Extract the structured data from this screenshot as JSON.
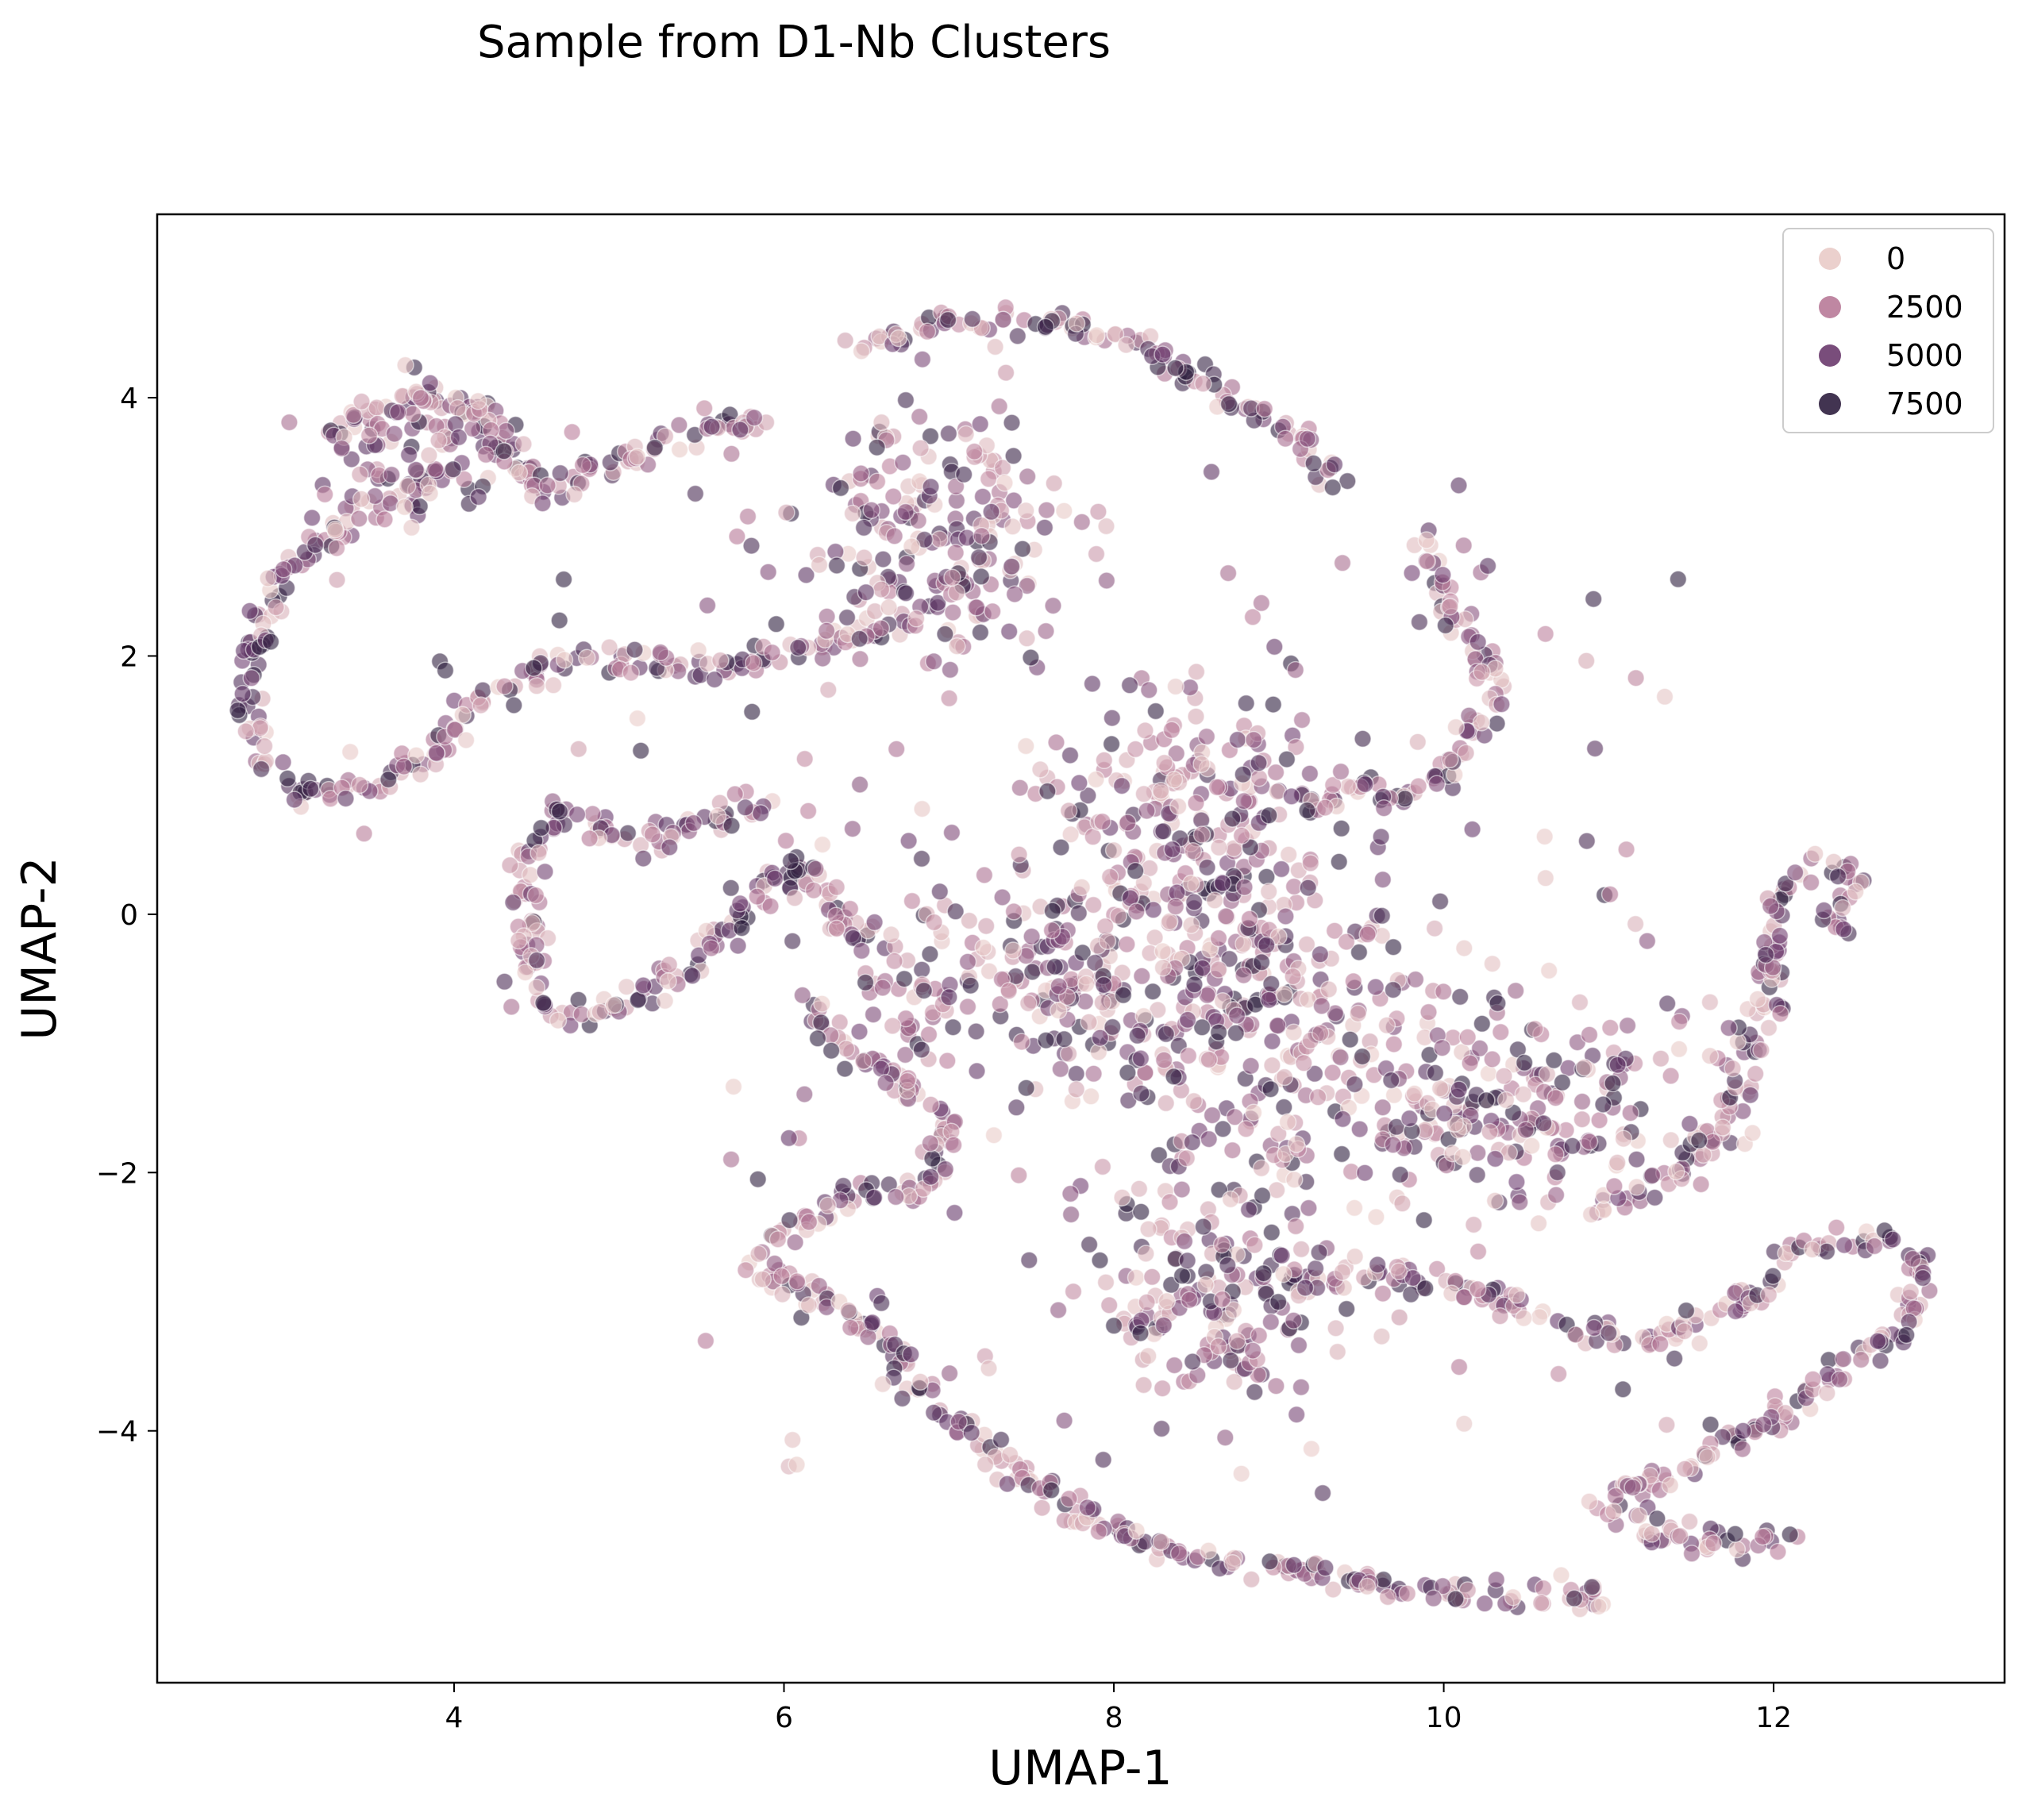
{
  "chart_data": {
    "type": "scatter",
    "title": "Sample from D1-Nb Clusters",
    "xlabel": "UMAP-1",
    "ylabel": "UMAP-2",
    "xlim": [
      2.2,
      13.4
    ],
    "ylim": [
      -5.95,
      5.42
    ],
    "xticks": [
      4,
      6,
      8,
      10,
      12
    ],
    "yticks": [
      -4,
      -2,
      0,
      2,
      4
    ],
    "xtick_labels": [
      "4",
      "6",
      "8",
      "10",
      "12"
    ],
    "ytick_labels": [
      "−4",
      "−2",
      "0",
      "2",
      "4"
    ],
    "grid": false,
    "legend": {
      "position": "top-right",
      "entries": [
        {
          "label": "0",
          "value": 0,
          "color": "#e9cbc8"
        },
        {
          "label": "2500",
          "value": 2500,
          "color": "#b87a98"
        },
        {
          "label": "5000",
          "value": 5000,
          "color": "#6a3a6d"
        },
        {
          "label": "7500",
          "value": 7500,
          "color": "#2d1e3e"
        }
      ]
    },
    "hue_range": [
      0,
      8500
    ],
    "point_alpha": 0.6,
    "structures": [
      {
        "name": "top-left-loop",
        "path": [
          [
            3.2,
            3.7
          ],
          [
            3.6,
            3.9
          ],
          [
            4.0,
            4.0
          ],
          [
            4.2,
            3.8
          ],
          [
            4.5,
            3.3
          ],
          [
            5.0,
            3.5
          ],
          [
            5.6,
            3.8
          ],
          [
            6.0,
            3.8
          ]
        ]
      },
      {
        "name": "left-c-arc",
        "path": [
          [
            3.9,
            3.4
          ],
          [
            3.4,
            3.1
          ],
          [
            3.0,
            2.7
          ],
          [
            2.8,
            2.2
          ],
          [
            2.75,
            1.6
          ],
          [
            2.9,
            1.1
          ],
          [
            3.2,
            0.9
          ],
          [
            3.6,
            1.0
          ],
          [
            3.9,
            1.3
          ],
          [
            4.2,
            1.7
          ],
          [
            4.6,
            1.95
          ],
          [
            5.0,
            2.0
          ],
          [
            5.5,
            1.9
          ],
          [
            6.0,
            2.0
          ],
          [
            6.4,
            2.1
          ],
          [
            6.8,
            2.3
          ]
        ]
      },
      {
        "name": "top-arc",
        "path": [
          [
            6.4,
            4.4
          ],
          [
            7.0,
            4.6
          ],
          [
            7.6,
            4.6
          ],
          [
            8.2,
            4.4
          ],
          [
            8.7,
            4.0
          ],
          [
            9.1,
            3.7
          ],
          [
            9.4,
            3.3
          ]
        ]
      },
      {
        "name": "mid-left-loop",
        "path": [
          [
            5.9,
            0.9
          ],
          [
            5.5,
            0.7
          ],
          [
            5.0,
            0.55
          ],
          [
            4.7,
            0.8
          ],
          [
            4.4,
            0.4
          ],
          [
            4.5,
            -0.2
          ],
          [
            4.4,
            -0.6
          ],
          [
            4.8,
            -0.8
          ],
          [
            5.2,
            -0.6
          ],
          [
            5.5,
            -0.3
          ],
          [
            5.8,
            0.0
          ],
          [
            6.0,
            0.4
          ],
          [
            6.3,
            0.1
          ],
          [
            6.6,
            -0.3
          ]
        ]
      },
      {
        "name": "right-hook",
        "path": [
          [
            9.8,
            2.9
          ],
          [
            10.0,
            2.5
          ],
          [
            10.2,
            2.0
          ],
          [
            10.3,
            1.7
          ],
          [
            10.1,
            1.2
          ],
          [
            9.8,
            0.9
          ],
          [
            9.4,
            1.0
          ],
          [
            9.1,
            0.8
          ]
        ]
      },
      {
        "name": "center-s",
        "path": [
          [
            6.2,
            -0.8
          ],
          [
            6.6,
            -1.2
          ],
          [
            7.0,
            -1.6
          ],
          [
            6.9,
            -2.1
          ],
          [
            6.4,
            -2.2
          ],
          [
            6.0,
            -2.5
          ],
          [
            5.8,
            -2.8
          ],
          [
            6.3,
            -3.0
          ],
          [
            6.7,
            -3.4
          ],
          [
            7.0,
            -3.9
          ],
          [
            7.5,
            -4.4
          ],
          [
            8.0,
            -4.8
          ],
          [
            8.6,
            -5.0
          ],
          [
            9.2,
            -5.1
          ],
          [
            9.9,
            -5.25
          ],
          [
            10.5,
            -5.3
          ],
          [
            11.0,
            -5.3
          ]
        ]
      },
      {
        "name": "bottom-right-arm",
        "path": [
          [
            9.0,
            -2.9
          ],
          [
            9.6,
            -2.8
          ],
          [
            10.2,
            -2.9
          ],
          [
            10.8,
            -3.2
          ],
          [
            11.3,
            -3.3
          ],
          [
            11.8,
            -3.0
          ],
          [
            12.2,
            -2.6
          ],
          [
            12.7,
            -2.5
          ],
          [
            12.9,
            -2.8
          ],
          [
            12.8,
            -3.2
          ],
          [
            12.4,
            -3.6
          ],
          [
            12.0,
            -3.9
          ],
          [
            11.6,
            -4.2
          ],
          [
            11.2,
            -4.4
          ],
          [
            10.9,
            -4.6
          ]
        ]
      },
      {
        "name": "far-right-arc",
        "path": [
          [
            10.9,
            -2.3
          ],
          [
            11.3,
            -2.1
          ],
          [
            11.6,
            -1.8
          ],
          [
            11.8,
            -1.4
          ],
          [
            11.9,
            -0.9
          ],
          [
            12.0,
            -0.4
          ],
          [
            12.0,
            0.1
          ],
          [
            12.2,
            0.4
          ],
          [
            12.5,
            0.3
          ],
          [
            12.4,
            -0.1
          ]
        ]
      },
      {
        "name": "bottom-right-cluster",
        "path": [
          [
            11.0,
            -4.6
          ],
          [
            11.4,
            -4.85
          ],
          [
            11.8,
            -4.9
          ],
          [
            12.1,
            -4.8
          ]
        ]
      }
    ],
    "clusters": [
      {
        "name": "top-left-blob",
        "x": 3.8,
        "y": 3.6,
        "sx": 0.35,
        "sy": 0.3
      },
      {
        "name": "upper-center-blob",
        "x": 6.9,
        "y": 2.9,
        "sx": 0.45,
        "sy": 0.5
      },
      {
        "name": "center-blob",
        "x": 8.8,
        "y": -0.6,
        "sx": 0.55,
        "sy": 0.7
      },
      {
        "name": "right-center-blob",
        "x": 10.3,
        "y": -1.5,
        "sx": 0.6,
        "sy": 0.4
      },
      {
        "name": "lower-center-blob",
        "x": 8.6,
        "y": -2.9,
        "sx": 0.4,
        "sy": 0.45
      },
      {
        "name": "center-upper-ridge",
        "x": 8.4,
        "y": 0.8,
        "sx": 0.35,
        "sy": 0.5
      },
      {
        "name": "center-left-loops",
        "x": 7.3,
        "y": -0.5,
        "sx": 0.5,
        "sy": 0.35
      }
    ]
  }
}
